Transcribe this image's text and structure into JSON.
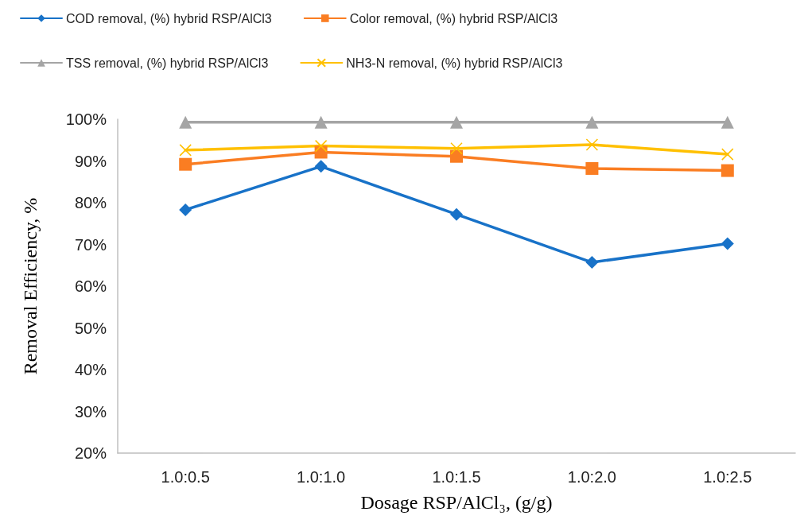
{
  "chart_data": {
    "type": "line",
    "xlabel": "Dosage RSP/AlCl₃, (g/g)",
    "ylabel": "Removal Efficiency, %",
    "categories": [
      "1.0:0.5",
      "1.0:1.0",
      "1.0:1.5",
      "1.0:2.0",
      "1.0:2.5"
    ],
    "ylim": [
      20,
      100
    ],
    "yticks": [
      {
        "value": 20,
        "label": "20%"
      },
      {
        "value": 30,
        "label": "30%"
      },
      {
        "value": 40,
        "label": "40%"
      },
      {
        "value": 50,
        "label": "50%"
      },
      {
        "value": 60,
        "label": "60%"
      },
      {
        "value": 70,
        "label": "70%"
      },
      {
        "value": 80,
        "label": "80%"
      },
      {
        "value": 90,
        "label": "90%"
      },
      {
        "value": 100,
        "label": "100%"
      }
    ],
    "grid": false,
    "legend": "top",
    "series": [
      {
        "name": "COD removal, (%) hybrid RSP/AlCl3",
        "color": "#1872c8",
        "marker": "diamond",
        "values": [
          78.3,
          88.7,
          77.2,
          65.7,
          70.2
        ]
      },
      {
        "name": "Color removal, (%) hybrid RSP/AlCl3",
        "color": "#fa7d22",
        "marker": "square",
        "values": [
          89.2,
          92.1,
          91.1,
          88.2,
          87.7
        ]
      },
      {
        "name": "TSS removal, (%) hybrid RSP/AlCl3",
        "color": "#a5a5a5",
        "marker": "triangle",
        "values": [
          99.3,
          99.3,
          99.3,
          99.3,
          99.3
        ]
      },
      {
        "name": "NH3-N removal, (%) hybrid RSP/AlCl3",
        "color": "#ffc000",
        "marker": "cross",
        "values": [
          92.6,
          93.6,
          93,
          93.9,
          91.6
        ]
      }
    ]
  }
}
